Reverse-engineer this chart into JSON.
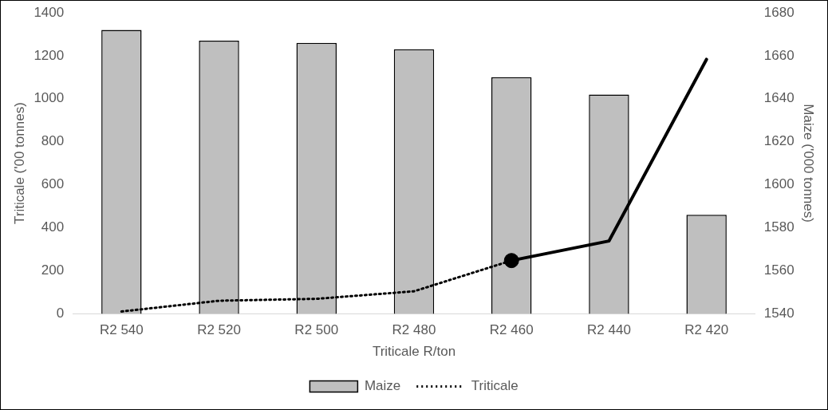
{
  "chart_data": {
    "type": "bar",
    "xlabel": "Triticale R/ton",
    "ylabel": "Triticale ('00 tonnes)",
    "y2label": "Maize ('000 tonnes)",
    "categories": [
      "R2 540",
      "R2 520",
      "R2 500",
      "R2 480",
      "R2 460",
      "R2 440",
      "R2 420"
    ],
    "series": [
      {
        "name": "Maize",
        "axis": "y2",
        "color": "#bfbfbf",
        "values": [
          1672,
          1667,
          1666,
          1663,
          1650,
          1642,
          1586
        ]
      },
      {
        "name": "Triticale",
        "type": "line",
        "axis": "y",
        "color": "#000000",
        "line_style": "dotted",
        "values": [
          10,
          60,
          69,
          104,
          247,
          null,
          null
        ]
      },
      {
        "type": "line",
        "axis": "y",
        "color": "#000000",
        "line_style": "solid",
        "values": [
          null,
          null,
          null,
          null,
          247,
          338,
          1183
        ]
      },
      {
        "type": "scatter",
        "axis": "y",
        "color": "#000000",
        "marker": "circle",
        "values": [
          null,
          null,
          null,
          null,
          247,
          null,
          null
        ]
      }
    ],
    "ylim": [
      0,
      1400
    ],
    "yticks": [
      0,
      200,
      400,
      600,
      800,
      1000,
      1200,
      1400
    ],
    "y2lim": [
      1540,
      1680
    ],
    "y2ticks": [
      1540,
      1560,
      1580,
      1600,
      1620,
      1640,
      1660,
      1680
    ],
    "grid": false,
    "legend": "bottom"
  }
}
